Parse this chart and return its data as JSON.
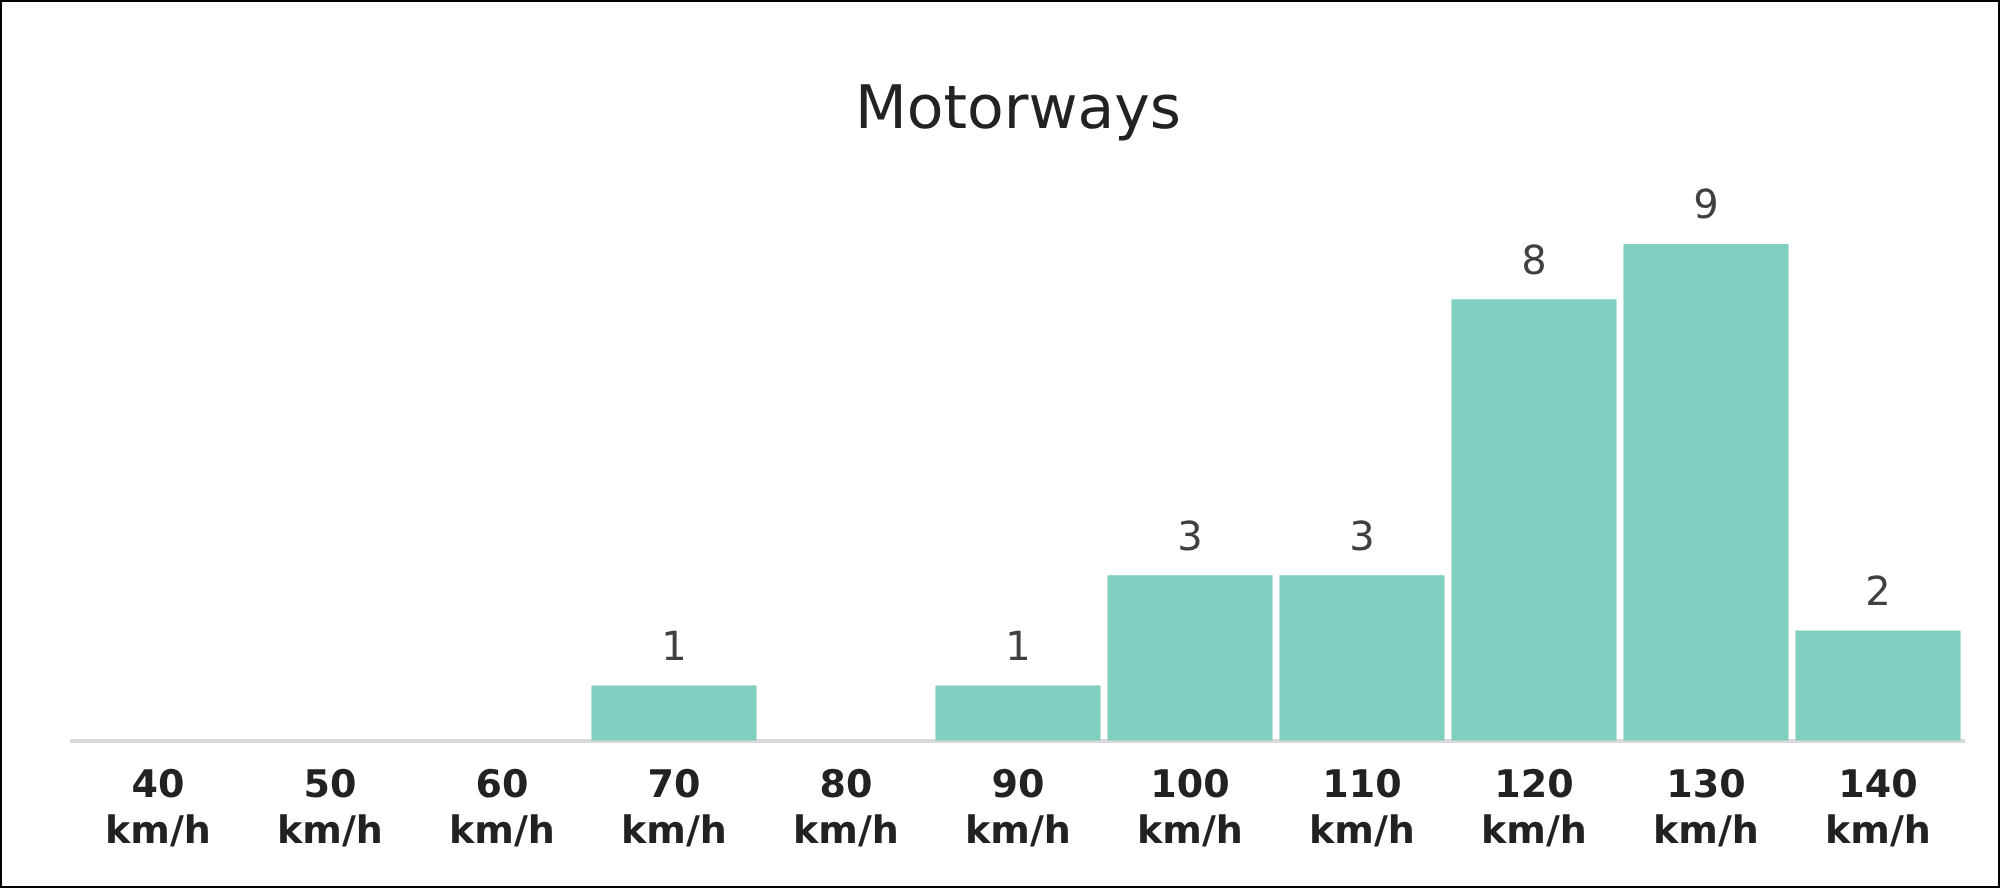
{
  "chart_data": {
    "type": "bar",
    "title": "Motorways",
    "categories": [
      "40 km/h",
      "50 km/h",
      "60 km/h",
      "70 km/h",
      "80 km/h",
      "90 km/h",
      "100 km/h",
      "110 km/h",
      "120 km/h",
      "130 km/h",
      "140 km/h"
    ],
    "values": [
      0,
      0,
      0,
      1,
      0,
      1,
      3,
      3,
      8,
      9,
      2
    ],
    "value_labels": [
      null,
      null,
      null,
      "1",
      null,
      "1",
      "3",
      "3",
      "8",
      "9",
      "2"
    ],
    "color": "#80cfc0",
    "grid": false,
    "legend": false
  }
}
